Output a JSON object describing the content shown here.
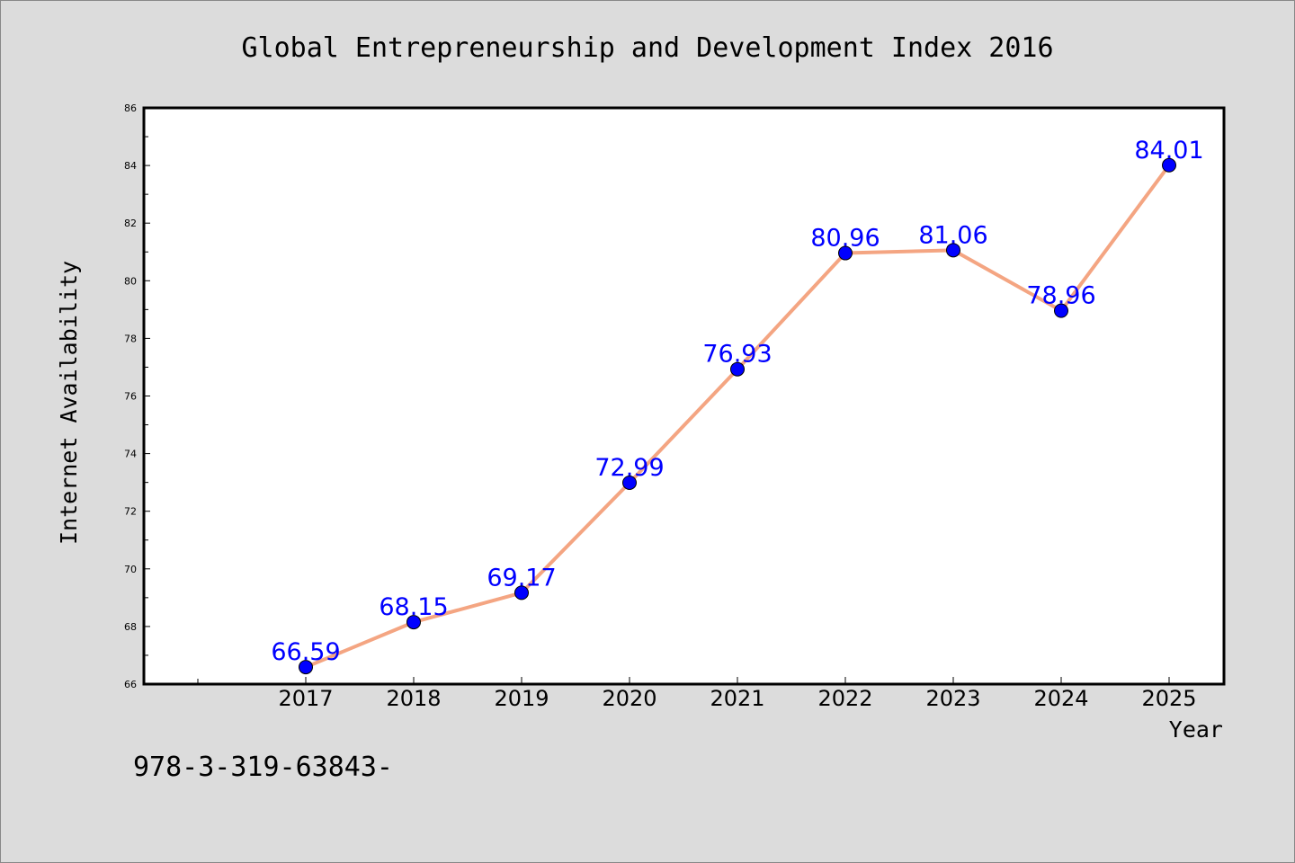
{
  "chart_data": {
    "type": "line",
    "title": "Global Entrepreneurship and Development Index 2016",
    "xlabel": "Year",
    "ylabel": "Internet Availability",
    "categories": [
      "2017",
      "2018",
      "2019",
      "2020",
      "2021",
      "2022",
      "2023",
      "2024",
      "2025"
    ],
    "series": [
      {
        "values": [
          66.59,
          68.15,
          69.17,
          72.99,
          76.93,
          80.96,
          81.06,
          78.96,
          84.01
        ],
        "labels": [
          "66.59",
          "68.15",
          "69.17",
          "72.99",
          "76.93",
          "80.96",
          "81.06",
          "78.96",
          "84.01"
        ],
        "line_color": "#f4a582",
        "marker_color": "#0000ff"
      }
    ],
    "ylim": [
      66,
      86
    ],
    "yticks": [
      "66",
      "68",
      "70",
      "72",
      "74",
      "76",
      "78",
      "80",
      "82",
      "84",
      "86"
    ],
    "grid": false,
    "legend": "none",
    "label_color": "#0000ff"
  },
  "footnote": "978-3-319-63843-",
  "colors": {
    "background": "#dcdcdc",
    "plot_background": "#ffffff",
    "axis": "#000000"
  }
}
